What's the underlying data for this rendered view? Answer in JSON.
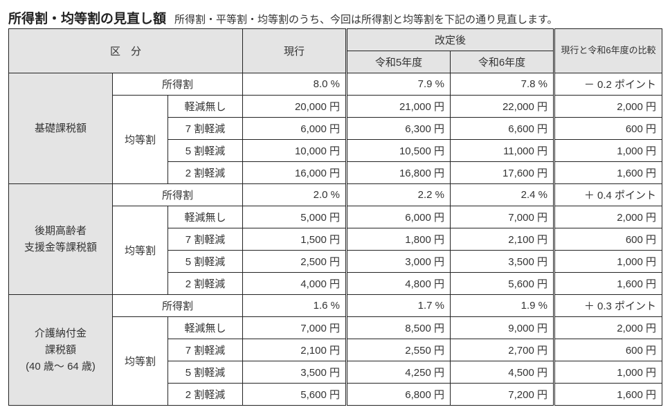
{
  "heading": {
    "title": "所得割・均等割の見直し額",
    "subtitle": "所得割・平等割・均等割のうち、今回は所得割と均等割を下記の通り見直します。"
  },
  "header": {
    "kubun": "区　分",
    "current": "現行",
    "after": "改定後",
    "r5": "令和5年度",
    "r6": "令和6年度",
    "compare": "現行と令和6年度の比較"
  },
  "labels": {
    "shotokuwari": "所得割",
    "kintowari": "均等割",
    "k_none": "軽減無し",
    "k_70": "7 割軽減",
    "k_50": "5 割軽減",
    "k_20": "2 割軽減"
  },
  "groups": [
    {
      "name": "基礎課税額",
      "income": {
        "curr": "8.0 %",
        "r5": "7.9 %",
        "r6": "7.8 %",
        "cmp": "－ 0.2 ポイント"
      },
      "percap": [
        {
          "curr": "20,000 円",
          "r5": "21,000 円",
          "r6": "22,000 円",
          "cmp": "2,000 円"
        },
        {
          "curr": "6,000 円",
          "r5": "6,300 円",
          "r6": "6,600 円",
          "cmp": "600 円"
        },
        {
          "curr": "10,000 円",
          "r5": "10,500 円",
          "r6": "11,000 円",
          "cmp": "1,000 円"
        },
        {
          "curr": "16,000 円",
          "r5": "16,800 円",
          "r6": "17,600 円",
          "cmp": "1,600 円"
        }
      ]
    },
    {
      "name": "後期高齢者\n支援金等課税額",
      "income": {
        "curr": "2.0 %",
        "r5": "2.2 %",
        "r6": "2.4 %",
        "cmp": "＋ 0.4 ポイント"
      },
      "percap": [
        {
          "curr": "5,000 円",
          "r5": "6,000 円",
          "r6": "7,000 円",
          "cmp": "2,000 円"
        },
        {
          "curr": "1,500 円",
          "r5": "1,800 円",
          "r6": "2,100 円",
          "cmp": "600 円"
        },
        {
          "curr": "2,500 円",
          "r5": "3,000 円",
          "r6": "3,500 円",
          "cmp": "1,000 円"
        },
        {
          "curr": "4,000 円",
          "r5": "4,800 円",
          "r6": "5,600 円",
          "cmp": "1,600 円"
        }
      ]
    },
    {
      "name": "介護納付金\n課税額\n(40 歳～ 64 歳)",
      "income": {
        "curr": "1.6 %",
        "r5": "1.7 %",
        "r6": "1.9 %",
        "cmp": "＋ 0.3 ポイント"
      },
      "percap": [
        {
          "curr": "7,000 円",
          "r5": "8,500 円",
          "r6": "9,000 円",
          "cmp": "2,000 円"
        },
        {
          "curr": "2,100 円",
          "r5": "2,550 円",
          "r6": "2,700 円",
          "cmp": "600 円"
        },
        {
          "curr": "3,500 円",
          "r5": "4,250 円",
          "r6": "4,500 円",
          "cmp": "1,000 円"
        },
        {
          "curr": "5,600 円",
          "r5": "6,800 円",
          "r6": "7,200 円",
          "cmp": "1,600 円"
        }
      ]
    }
  ]
}
